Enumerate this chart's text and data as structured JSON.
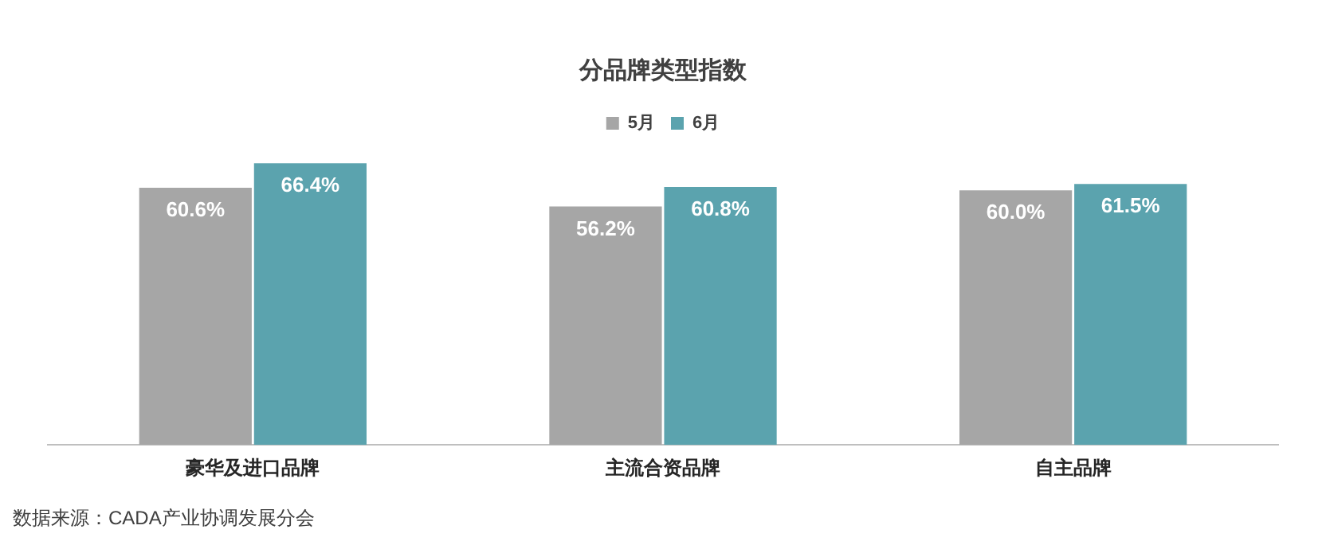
{
  "chart_data": {
    "type": "bar",
    "title": "分品牌类型指数",
    "categories": [
      "豪华及进口品牌",
      "主流合资品牌",
      "自主品牌"
    ],
    "series": [
      {
        "name": "5月",
        "color": "#a6a6a6",
        "values": [
          60.6,
          56.2,
          60.0
        ],
        "value_labels": [
          "60.6%",
          "56.2%",
          "60.0%"
        ]
      },
      {
        "name": "6月",
        "color": "#5ba3ae",
        "values": [
          66.4,
          60.8,
          61.5
        ],
        "value_labels": [
          "66.4%",
          "60.8%",
          "61.5%"
        ]
      }
    ],
    "legend": "top",
    "annotations": [
      "数据来源：CADA产业协调发展分会"
    ]
  }
}
